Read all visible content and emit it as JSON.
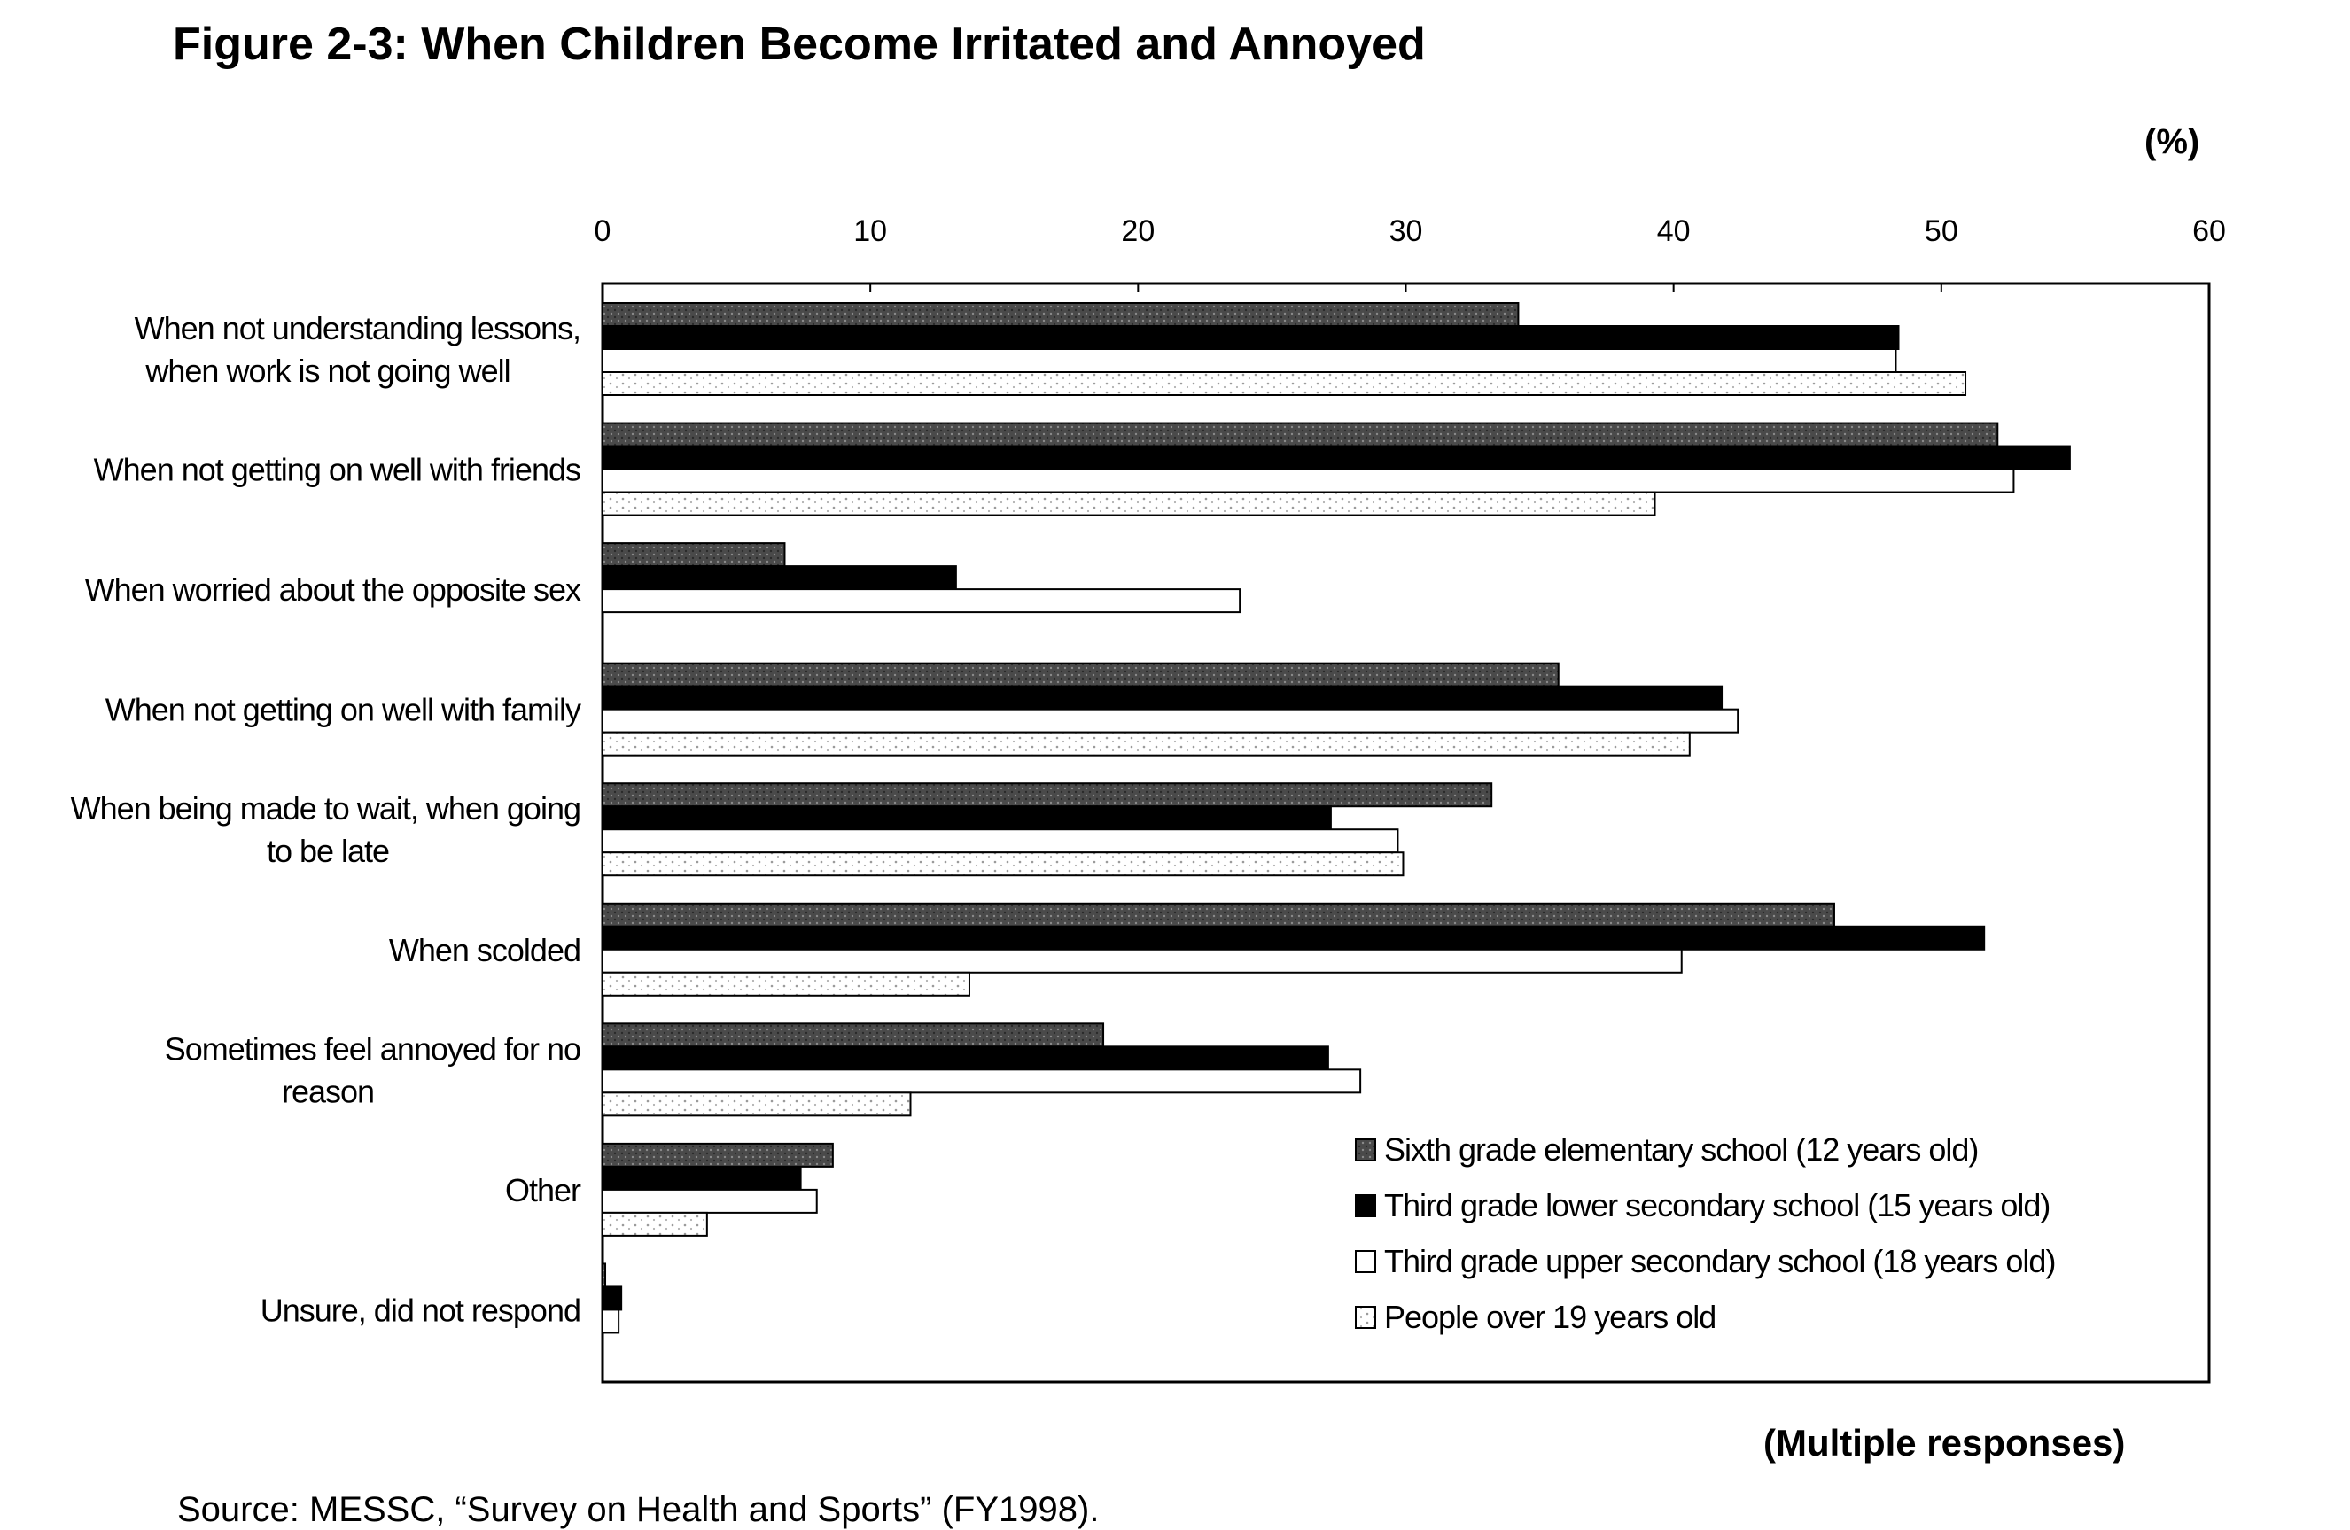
{
  "figure": {
    "title": "Figure 2-3: When Children Become Irritated and Annoyed",
    "unit": "(%)",
    "note": "(Multiple responses)",
    "source": "Source: MESSC, “Survey on Health and Sports” (FY1998)."
  },
  "chart_data": {
    "type": "bar",
    "orientation": "horizontal",
    "xlim": [
      0,
      60
    ],
    "x_ticks": [
      0,
      10,
      20,
      30,
      40,
      50,
      60
    ],
    "grid": false,
    "legend_position": "bottom-right inside plot",
    "categories": [
      [
        "When not understanding lessons,",
        "when work is not going well"
      ],
      [
        "When not getting on well with friends"
      ],
      [
        "When worried about the opposite sex"
      ],
      [
        "When not getting on well with family"
      ],
      [
        "When being made to wait, when going",
        "to be late"
      ],
      [
        "When scolded"
      ],
      [
        "Sometimes feel annoyed for no",
        "reason"
      ],
      [
        "Other"
      ],
      [
        "Unsure, did not respond"
      ]
    ],
    "series": [
      {
        "name": "Sixth grade elementary school (12 years old)",
        "color": "#555555",
        "values": [
          34.2,
          52.1,
          6.8,
          35.7,
          33.2,
          46.0,
          18.7,
          8.6,
          0.1
        ]
      },
      {
        "name": "Third grade lower secondary school (15 years old)",
        "color": "#000000",
        "values": [
          48.4,
          54.8,
          13.2,
          41.8,
          27.2,
          51.6,
          27.1,
          7.4,
          0.7
        ]
      },
      {
        "name": "Third grade upper secondary school (18 years old)",
        "color": "#ffffff",
        "values": [
          48.3,
          52.7,
          23.8,
          42.4,
          29.7,
          40.3,
          28.3,
          8.0,
          0.6
        ]
      },
      {
        "name": "People over 19 years old",
        "color": "#e6e6e6",
        "values": [
          50.9,
          39.3,
          0,
          40.6,
          29.9,
          13.7,
          11.5,
          3.9,
          0
        ]
      }
    ]
  }
}
